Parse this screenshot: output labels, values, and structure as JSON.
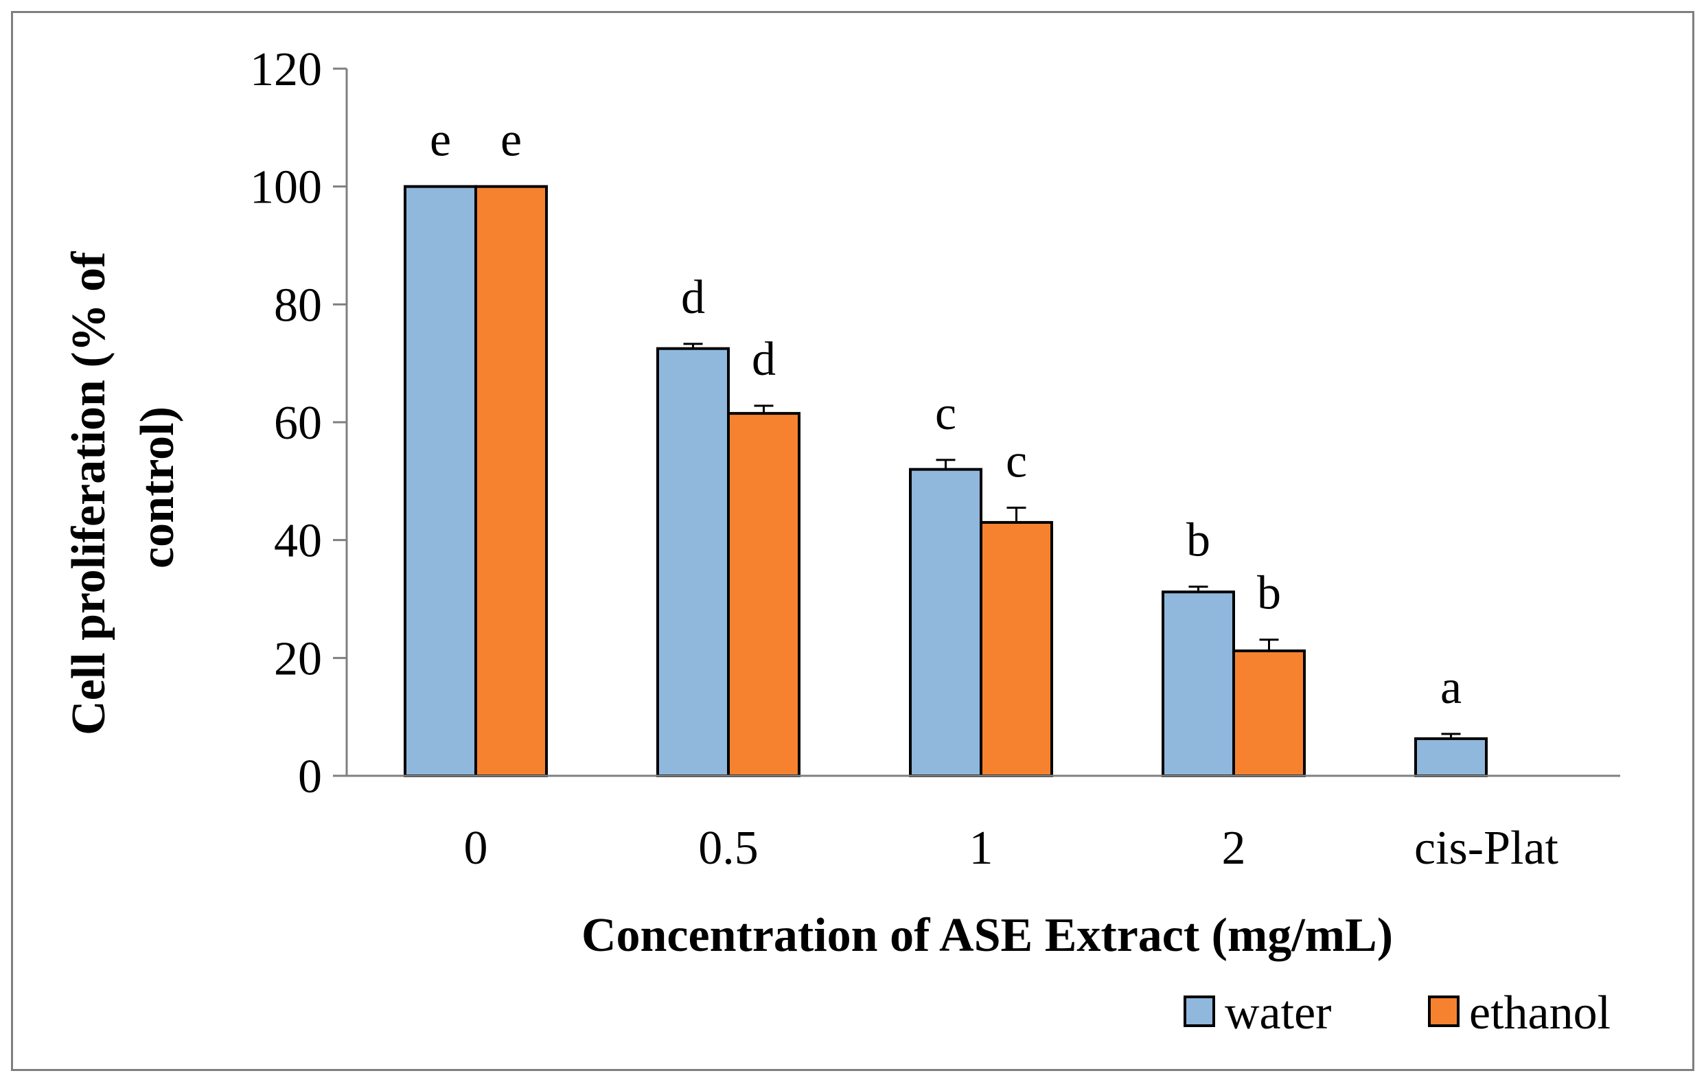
{
  "chart_data": {
    "type": "bar",
    "title": "",
    "xlabel": "Concentration of ASE Extract (mg/mL)",
    "ylabel": "Cell proliferation (% of control)",
    "ylabel_lines": [
      "Cell proliferation (% of",
      "control)"
    ],
    "ylim": [
      0,
      120
    ],
    "yticks": [
      0,
      20,
      40,
      60,
      80,
      100,
      120
    ],
    "ytick_labels": [
      "0",
      "20",
      "40",
      "60",
      "80",
      "100",
      "120"
    ],
    "categories": [
      "0",
      "0.5",
      "1",
      "2",
      "cis-Plat"
    ],
    "grid": false,
    "legend_position": "bottom-right",
    "series": [
      {
        "name": "water",
        "color": "#8fb8dc",
        "values": [
          100,
          72.5,
          52,
          31.2,
          6.3
        ],
        "errors": [
          0,
          0.8,
          1.6,
          0.9,
          0.8
        ],
        "annotations": [
          "e",
          "d",
          "c",
          "b",
          "a"
        ]
      },
      {
        "name": "ethanol",
        "color": "#f6822f",
        "values": [
          100,
          61.5,
          43,
          21.2,
          null
        ],
        "errors": [
          0,
          1.3,
          2.5,
          1.9,
          null
        ],
        "annotations": [
          "e",
          "d",
          "c",
          "b",
          null
        ]
      }
    ]
  }
}
